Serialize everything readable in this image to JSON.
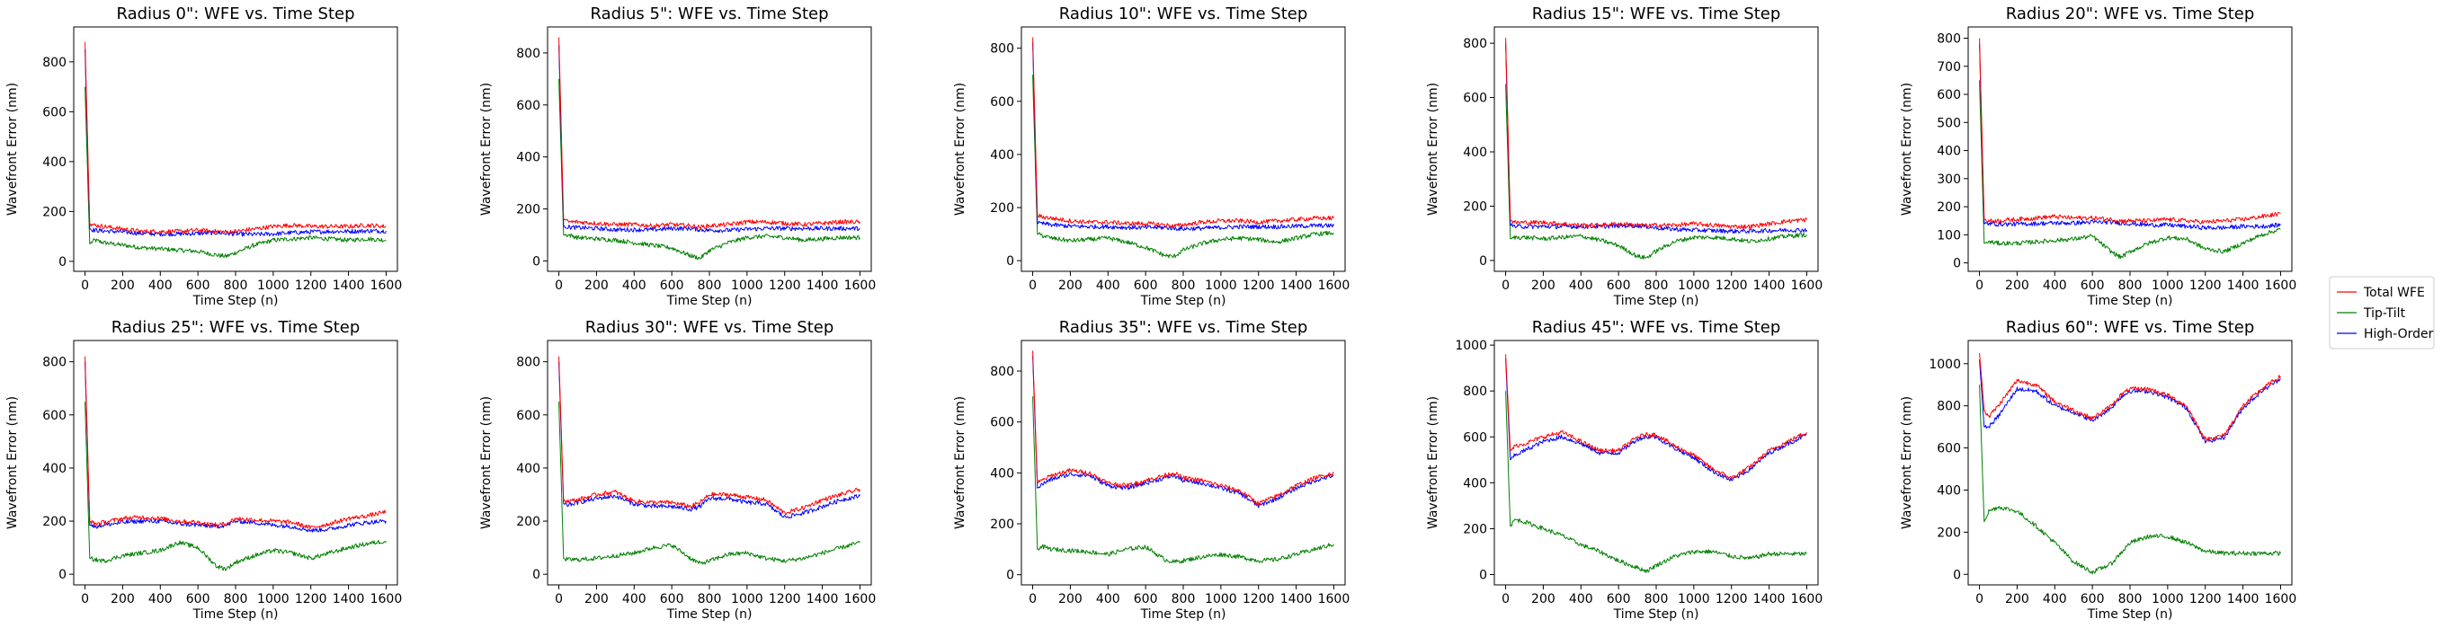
{
  "chart_data": {
    "type": "line",
    "xlabel": "Time Step (n)",
    "ylabel": "Wavefront Error (nm)",
    "xlim": [
      -60,
      1660
    ],
    "x_ticks": [
      0,
      200,
      400,
      600,
      800,
      1000,
      1200,
      1400,
      1600
    ],
    "legend": {
      "position": "right",
      "entries": [
        {
          "label": "Total WFE",
          "color": "#ff0000"
        },
        {
          "label": "Tip-Tilt",
          "color": "#008000"
        },
        {
          "label": "High-Order",
          "color": "#0000ff"
        }
      ]
    },
    "series_colors": {
      "total": "#ff0000",
      "tip_tilt": "#008000",
      "high_order": "#0000ff"
    },
    "x": [
      0,
      25,
      50,
      100,
      200,
      300,
      400,
      500,
      600,
      700,
      750,
      800,
      900,
      1000,
      1100,
      1200,
      1300,
      1400,
      1500,
      1600
    ],
    "panels": [
      {
        "title": "Radius 0\": WFE vs. Time Step",
        "ylim": [
          -40,
          940
        ],
        "y_ticks": [
          0,
          200,
          400,
          600,
          800
        ],
        "series": {
          "total": [
            880,
            150,
            145,
            140,
            130,
            120,
            120,
            120,
            125,
            120,
            118,
            120,
            130,
            140,
            145,
            140,
            140,
            140,
            145,
            140
          ],
          "tip_tilt": [
            700,
            70,
            85,
            75,
            65,
            55,
            50,
            45,
            40,
            25,
            20,
            35,
            65,
            85,
            90,
            95,
            90,
            85,
            90,
            85
          ],
          "high_order": [
            850,
            130,
            125,
            122,
            118,
            112,
            110,
            110,
            112,
            115,
            112,
            110,
            108,
            110,
            115,
            118,
            120,
            120,
            122,
            122
          ]
        }
      },
      {
        "title": "Radius 5\": WFE vs. Time Step",
        "ylim": [
          -40,
          900
        ],
        "y_ticks": [
          0,
          200,
          400,
          600,
          800
        ],
        "series": {
          "total": [
            860,
            160,
            150,
            150,
            145,
            140,
            140,
            135,
            140,
            135,
            130,
            135,
            140,
            150,
            150,
            145,
            140,
            145,
            150,
            150
          ],
          "tip_tilt": [
            700,
            100,
            100,
            90,
            85,
            80,
            70,
            60,
            50,
            20,
            10,
            40,
            70,
            90,
            95,
            90,
            80,
            85,
            90,
            90
          ],
          "high_order": [
            830,
            135,
            130,
            128,
            125,
            120,
            120,
            120,
            125,
            125,
            120,
            118,
            118,
            122,
            125,
            125,
            125,
            125,
            125,
            125
          ]
        }
      },
      {
        "title": "Radius 10\": WFE vs. Time Step",
        "ylim": [
          -40,
          880
        ],
        "y_ticks": [
          0,
          200,
          400,
          600,
          800
        ],
        "series": {
          "total": [
            840,
            170,
            165,
            160,
            150,
            145,
            145,
            140,
            140,
            135,
            130,
            135,
            145,
            150,
            150,
            145,
            150,
            155,
            160,
            160
          ],
          "tip_tilt": [
            700,
            100,
            95,
            85,
            75,
            80,
            85,
            70,
            50,
            20,
            15,
            40,
            65,
            80,
            85,
            80,
            70,
            85,
            100,
            105
          ],
          "high_order": [
            820,
            140,
            140,
            135,
            130,
            128,
            128,
            125,
            125,
            125,
            122,
            120,
            122,
            125,
            128,
            128,
            128,
            130,
            132,
            132
          ]
        }
      },
      {
        "title": "Radius 15\": WFE vs. Time Step",
        "ylim": [
          -40,
          860
        ],
        "y_ticks": [
          0,
          200,
          400,
          600,
          800
        ],
        "series": {
          "total": [
            820,
            150,
            140,
            140,
            140,
            135,
            130,
            130,
            135,
            130,
            128,
            130,
            130,
            135,
            130,
            125,
            125,
            135,
            145,
            150
          ],
          "tip_tilt": [
            650,
            80,
            85,
            85,
            80,
            85,
            90,
            75,
            55,
            15,
            10,
            35,
            70,
            85,
            85,
            80,
            70,
            80,
            90,
            95
          ],
          "high_order": [
            800,
            130,
            125,
            125,
            125,
            125,
            125,
            125,
            128,
            128,
            125,
            120,
            115,
            112,
            110,
            108,
            108,
            110,
            112,
            112
          ]
        }
      },
      {
        "title": "Radius 20\": WFE vs. Time Step",
        "ylim": [
          -30,
          840
        ],
        "y_ticks": [
          0,
          100,
          200,
          300,
          400,
          500,
          600,
          700,
          800
        ],
        "series": {
          "total": [
            800,
            155,
            150,
            150,
            155,
            160,
            165,
            160,
            160,
            155,
            150,
            150,
            150,
            155,
            150,
            145,
            150,
            155,
            165,
            175
          ],
          "tip_tilt": [
            650,
            70,
            75,
            70,
            70,
            75,
            80,
            85,
            95,
            40,
            20,
            40,
            70,
            90,
            85,
            50,
            40,
            70,
            100,
            120
          ],
          "high_order": [
            780,
            140,
            140,
            138,
            138,
            140,
            142,
            142,
            145,
            145,
            142,
            140,
            135,
            135,
            130,
            125,
            125,
            130,
            130,
            135
          ]
        }
      },
      {
        "title": "Radius 25\": WFE vs. Time Step",
        "ylim": [
          -40,
          880
        ],
        "y_ticks": [
          0,
          200,
          400,
          600,
          800
        ],
        "series": {
          "total": [
            820,
            200,
            190,
            195,
            210,
            215,
            210,
            200,
            195,
            185,
            190,
            210,
            205,
            200,
            195,
            175,
            190,
            210,
            220,
            235
          ],
          "tip_tilt": [
            650,
            60,
            55,
            50,
            70,
            80,
            90,
            120,
            100,
            30,
            20,
            45,
            70,
            90,
            80,
            60,
            80,
            100,
            115,
            125
          ],
          "high_order": [
            800,
            185,
            180,
            185,
            195,
            200,
            200,
            190,
            185,
            180,
            185,
            200,
            195,
            185,
            180,
            165,
            170,
            185,
            195,
            200
          ]
        }
      },
      {
        "title": "Radius 30\": WFE vs. Time Step",
        "ylim": [
          -40,
          880
        ],
        "y_ticks": [
          0,
          200,
          400,
          600,
          800
        ],
        "series": {
          "total": [
            820,
            280,
            275,
            280,
            300,
            310,
            275,
            270,
            270,
            255,
            270,
            300,
            300,
            290,
            280,
            230,
            250,
            280,
            300,
            320
          ],
          "tip_tilt": [
            650,
            60,
            55,
            55,
            60,
            70,
            80,
            100,
            110,
            60,
            40,
            50,
            75,
            80,
            60,
            50,
            60,
            80,
            100,
            120
          ],
          "high_order": [
            800,
            265,
            260,
            270,
            285,
            295,
            265,
            255,
            255,
            245,
            255,
            285,
            285,
            270,
            265,
            215,
            230,
            255,
            280,
            295
          ]
        }
      },
      {
        "title": "Radius 35\": WFE vs. Time Step",
        "ylim": [
          -40,
          920
        ],
        "y_ticks": [
          0,
          200,
          400,
          600,
          800
        ],
        "series": {
          "total": [
            880,
            360,
            370,
            390,
            410,
            400,
            360,
            350,
            370,
            390,
            400,
            380,
            370,
            350,
            330,
            280,
            310,
            350,
            380,
            400
          ],
          "tip_tilt": [
            700,
            100,
            110,
            100,
            95,
            90,
            80,
            100,
            110,
            60,
            50,
            55,
            70,
            80,
            70,
            55,
            60,
            80,
            100,
            120
          ],
          "high_order": [
            860,
            340,
            355,
            375,
            395,
            390,
            350,
            340,
            360,
            380,
            390,
            370,
            360,
            340,
            320,
            270,
            300,
            340,
            370,
            390
          ]
        }
      },
      {
        "title": "Radius 45\": WFE vs. Time Step",
        "ylim": [
          -45,
          1020
        ],
        "y_ticks": [
          0,
          200,
          400,
          600,
          800,
          1000
        ],
        "series": {
          "total": [
            960,
            540,
            560,
            570,
            600,
            620,
            580,
            540,
            540,
            600,
            610,
            610,
            560,
            520,
            460,
            420,
            470,
            540,
            580,
            620
          ],
          "tip_tilt": [
            800,
            210,
            240,
            230,
            200,
            170,
            130,
            100,
            60,
            30,
            15,
            40,
            80,
            100,
            100,
            80,
            70,
            90,
            90,
            90
          ],
          "high_order": [
            940,
            500,
            520,
            540,
            580,
            600,
            570,
            530,
            530,
            590,
            600,
            600,
            550,
            510,
            450,
            410,
            460,
            530,
            570,
            610
          ]
        }
      },
      {
        "title": "Radius 60\": WFE vs. Time Step",
        "ylim": [
          -50,
          1110
        ],
        "y_ticks": [
          0,
          200,
          400,
          600,
          800,
          1000
        ],
        "series": {
          "total": [
            1050,
            780,
            750,
            800,
            920,
            900,
            820,
            780,
            740,
            800,
            850,
            880,
            880,
            850,
            800,
            640,
            660,
            800,
            880,
            940
          ],
          "tip_tilt": [
            900,
            250,
            300,
            320,
            300,
            230,
            150,
            60,
            10,
            50,
            100,
            150,
            180,
            180,
            150,
            110,
            100,
            100,
            100,
            100
          ],
          "high_order": [
            1020,
            700,
            700,
            750,
            880,
            870,
            800,
            770,
            730,
            790,
            840,
            870,
            870,
            840,
            790,
            630,
            650,
            790,
            870,
            930
          ]
        }
      }
    ]
  }
}
